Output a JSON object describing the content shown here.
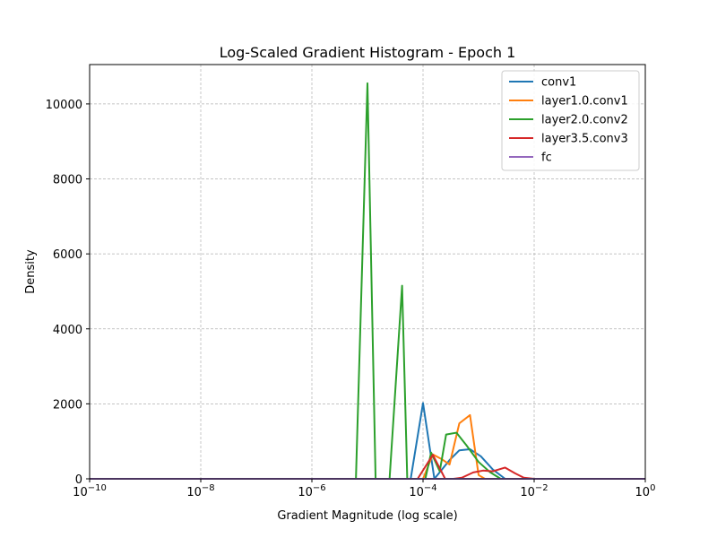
{
  "chart_data": {
    "type": "line",
    "title": "Log-Scaled Gradient Histogram - Epoch 1",
    "xlabel": "Gradient Magnitude (log scale)",
    "ylabel": "Density",
    "xscale": "log",
    "xlim": [
      1e-10,
      1
    ],
    "ylim": [
      0,
      11050
    ],
    "x_ticks": [
      {
        "value": 1e-10,
        "base": "10",
        "exp": "−10"
      },
      {
        "value": 1e-08,
        "base": "10",
        "exp": "−8"
      },
      {
        "value": 1e-06,
        "base": "10",
        "exp": "−6"
      },
      {
        "value": 0.0001,
        "base": "10",
        "exp": "−4"
      },
      {
        "value": 0.01,
        "base": "10",
        "exp": "−2"
      },
      {
        "value": 1,
        "base": "10",
        "exp": "0"
      }
    ],
    "y_ticks": [
      {
        "value": 0,
        "label": "0"
      },
      {
        "value": 2000,
        "label": "2000"
      },
      {
        "value": 4000,
        "label": "4000"
      },
      {
        "value": 6000,
        "label": "6000"
      },
      {
        "value": 8000,
        "label": "8000"
      },
      {
        "value": 10000,
        "label": "10000"
      }
    ],
    "grid": true,
    "legend_position": "top-right",
    "series": [
      {
        "name": "conv1",
        "color": "#1f77b4",
        "points": [
          [
            1e-10,
            0
          ],
          [
            6e-05,
            0
          ],
          [
            0.0001,
            2020
          ],
          [
            0.00016,
            0
          ],
          [
            0.00022,
            250
          ],
          [
            0.0003,
            500
          ],
          [
            0.00045,
            760
          ],
          [
            0.0007,
            790
          ],
          [
            0.0011,
            600
          ],
          [
            0.0018,
            250
          ],
          [
            0.003,
            0
          ],
          [
            1,
            0
          ]
        ]
      },
      {
        "name": "layer1.0.conv1",
        "color": "#ff7f0e",
        "points": [
          [
            1e-10,
            0
          ],
          [
            0.0001,
            0
          ],
          [
            0.00015,
            650
          ],
          [
            0.00022,
            520
          ],
          [
            0.0003,
            380
          ],
          [
            0.00045,
            1480
          ],
          [
            0.0007,
            1700
          ],
          [
            0.001,
            100
          ],
          [
            0.0013,
            0
          ],
          [
            1,
            0
          ]
        ]
      },
      {
        "name": "layer2.0.conv2",
        "color": "#2ca02c",
        "points": [
          [
            1e-10,
            0
          ],
          [
            6.2e-06,
            0
          ],
          [
            1e-05,
            10550
          ],
          [
            1.4e-05,
            0
          ],
          [
            2.5e-05,
            0
          ],
          [
            4.2e-05,
            5150
          ],
          [
            5.2e-05,
            0
          ],
          [
            6.2e-05,
            0
          ],
          [
            8e-05,
            0
          ],
          [
            0.00011,
            0
          ],
          [
            0.00014,
            700
          ],
          [
            0.0002,
            200
          ],
          [
            0.00026,
            1180
          ],
          [
            0.0004,
            1230
          ],
          [
            0.0006,
            900
          ],
          [
            0.001,
            450
          ],
          [
            0.0016,
            180
          ],
          [
            0.0025,
            0
          ],
          [
            1,
            0
          ]
        ]
      },
      {
        "name": "layer3.5.conv3",
        "color": "#d62728",
        "points": [
          [
            1e-10,
            0
          ],
          [
            8e-05,
            0
          ],
          [
            0.00015,
            640
          ],
          [
            0.00025,
            0
          ],
          [
            0.00035,
            0
          ],
          [
            0.0005,
            30
          ],
          [
            0.0008,
            170
          ],
          [
            0.0012,
            220
          ],
          [
            0.0018,
            200
          ],
          [
            0.003,
            300
          ],
          [
            0.0045,
            150
          ],
          [
            0.0065,
            30
          ],
          [
            0.01,
            0
          ],
          [
            1,
            0
          ]
        ]
      },
      {
        "name": "fc",
        "color": "#9467bd",
        "points": [
          [
            1e-10,
            0
          ],
          [
            1,
            0
          ]
        ]
      }
    ]
  }
}
